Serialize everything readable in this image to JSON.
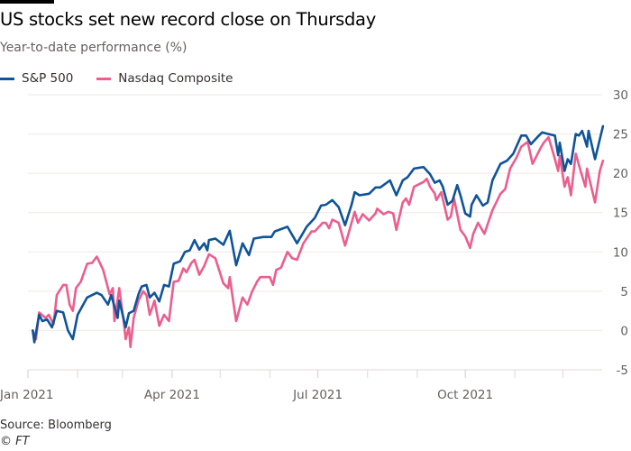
{
  "chart_data": {
    "type": "line",
    "title": "US stocks set new record close on Thursday",
    "subtitle": "Year-to-date performance (%)",
    "xlabel": "",
    "ylabel": "",
    "xlim": [
      "2021-01-01",
      "2021-12-31"
    ],
    "ylim": [
      -5,
      30
    ],
    "yticks": [
      30,
      25,
      20,
      15,
      10,
      5,
      0,
      -5
    ],
    "xticks": [
      {
        "date": "2021-01-01",
        "label": "Jan 2021"
      },
      {
        "date": "2021-04-01",
        "label": "Apr 2021"
      },
      {
        "date": "2021-07-01",
        "label": "Jul 2021"
      },
      {
        "date": "2021-10-01",
        "label": "Oct 2021"
      }
    ],
    "minor_xticks": [
      "2021-02-01",
      "2021-03-01",
      "2021-05-01",
      "2021-06-01",
      "2021-08-01",
      "2021-09-01",
      "2021-11-01",
      "2021-12-01"
    ],
    "grid": "horizontal",
    "legend_position": "top-left",
    "series": [
      {
        "name": "S&P 500",
        "color": "#0f5499",
        "points": [
          [
            "2021-01-04",
            0
          ],
          [
            "2021-01-05",
            -1.5
          ],
          [
            "2021-01-06",
            -0.3
          ],
          [
            "2021-01-08",
            2
          ],
          [
            "2021-01-10",
            1.2
          ],
          [
            "2021-01-13",
            1.4
          ],
          [
            "2021-01-16",
            0.4
          ],
          [
            "2021-01-19",
            2.5
          ],
          [
            "2021-01-23",
            2.3
          ],
          [
            "2021-01-26",
            0
          ],
          [
            "2021-01-29",
            -1.1
          ],
          [
            "2021-02-01",
            2
          ],
          [
            "2021-02-07",
            4.2
          ],
          [
            "2021-02-13",
            4.8
          ],
          [
            "2021-02-16",
            4.5
          ],
          [
            "2021-02-20",
            3.3
          ],
          [
            "2021-02-22",
            4.5
          ],
          [
            "2021-02-26",
            1.6
          ],
          [
            "2021-02-27",
            3.8
          ],
          [
            "2021-03-03",
            0.4
          ],
          [
            "2021-03-05",
            2.2
          ],
          [
            "2021-03-08",
            2.5
          ],
          [
            "2021-03-11",
            4.6
          ],
          [
            "2021-03-13",
            5.6
          ],
          [
            "2021-03-16",
            5.8
          ],
          [
            "2021-03-18",
            4.2
          ],
          [
            "2021-03-21",
            4.8
          ],
          [
            "2021-03-24",
            3.7
          ],
          [
            "2021-03-27",
            5.8
          ],
          [
            "2021-03-30",
            5.6
          ],
          [
            "2021-04-02",
            8.5
          ],
          [
            "2021-04-06",
            8.8
          ],
          [
            "2021-04-09",
            10
          ],
          [
            "2021-04-12",
            10.2
          ],
          [
            "2021-04-15",
            11.5
          ],
          [
            "2021-04-18",
            10.3
          ],
          [
            "2021-04-21",
            11.1
          ],
          [
            "2021-04-23",
            10.2
          ],
          [
            "2021-04-24",
            11.5
          ],
          [
            "2021-04-28",
            11.7
          ],
          [
            "2021-05-03",
            10.9
          ],
          [
            "2021-05-07",
            12.7
          ],
          [
            "2021-05-11",
            8.3
          ],
          [
            "2021-05-15",
            11.1
          ],
          [
            "2021-05-19",
            9.6
          ],
          [
            "2021-05-22",
            11.7
          ],
          [
            "2021-05-28",
            11.9
          ],
          [
            "2021-06-02",
            11.9
          ],
          [
            "2021-06-04",
            12.6
          ],
          [
            "2021-06-12",
            13.2
          ],
          [
            "2021-06-18",
            11.1
          ],
          [
            "2021-06-24",
            13.2
          ],
          [
            "2021-06-29",
            14.3
          ],
          [
            "2021-07-03",
            15.9
          ],
          [
            "2021-07-06",
            16
          ],
          [
            "2021-07-10",
            16.6
          ],
          [
            "2021-07-14",
            15.7
          ],
          [
            "2021-07-18",
            13.4
          ],
          [
            "2021-07-22",
            16
          ],
          [
            "2021-07-24",
            17.6
          ],
          [
            "2021-07-27",
            17.2
          ],
          [
            "2021-08-02",
            17.4
          ],
          [
            "2021-08-06",
            18.2
          ],
          [
            "2021-08-09",
            18.2
          ],
          [
            "2021-08-15",
            19.1
          ],
          [
            "2021-08-19",
            17.2
          ],
          [
            "2021-08-23",
            19.1
          ],
          [
            "2021-08-26",
            19.5
          ],
          [
            "2021-08-30",
            20.6
          ],
          [
            "2021-09-05",
            20.8
          ],
          [
            "2021-09-09",
            19.9
          ],
          [
            "2021-09-12",
            18.8
          ],
          [
            "2021-09-15",
            19.1
          ],
          [
            "2021-09-17",
            18.3
          ],
          [
            "2021-09-20",
            16
          ],
          [
            "2021-09-23",
            16.5
          ],
          [
            "2021-09-26",
            18.5
          ],
          [
            "2021-09-28",
            17.2
          ],
          [
            "2021-10-01",
            14.9
          ],
          [
            "2021-10-04",
            14.5
          ],
          [
            "2021-10-05",
            16
          ],
          [
            "2021-10-08",
            17.2
          ],
          [
            "2021-10-12",
            15.9
          ],
          [
            "2021-10-15",
            16.3
          ],
          [
            "2021-10-18",
            19.1
          ],
          [
            "2021-10-23",
            21.2
          ],
          [
            "2021-10-27",
            21.6
          ],
          [
            "2021-10-31",
            22.5
          ],
          [
            "2021-11-05",
            24.8
          ],
          [
            "2021-11-08",
            24.8
          ],
          [
            "2021-11-11",
            23.7
          ],
          [
            "2021-11-15",
            24.6
          ],
          [
            "2021-11-18",
            25.2
          ],
          [
            "2021-11-22",
            25
          ],
          [
            "2021-11-26",
            24.8
          ],
          [
            "2021-11-28",
            22.3
          ],
          [
            "2021-11-29",
            23.9
          ],
          [
            "2021-12-02",
            20.3
          ],
          [
            "2021-12-04",
            21.8
          ],
          [
            "2021-12-06",
            21.2
          ],
          [
            "2021-12-09",
            25
          ],
          [
            "2021-12-11",
            24.8
          ],
          [
            "2021-12-13",
            25.4
          ],
          [
            "2021-12-16",
            23.4
          ],
          [
            "2021-12-17",
            25.4
          ],
          [
            "2021-12-21",
            21.8
          ],
          [
            "2021-12-26",
            26
          ]
        ]
      },
      {
        "name": "Nasdaq Composite",
        "color": "#eb5e8d",
        "points": [
          [
            "2021-01-04",
            0
          ],
          [
            "2021-01-06",
            -1.1
          ],
          [
            "2021-01-08",
            2.3
          ],
          [
            "2021-01-12",
            1.6
          ],
          [
            "2021-01-14",
            2
          ],
          [
            "2021-01-17",
            0.8
          ],
          [
            "2021-01-19",
            4.5
          ],
          [
            "2021-01-23",
            5.8
          ],
          [
            "2021-01-25",
            5.8
          ],
          [
            "2021-01-27",
            3.3
          ],
          [
            "2021-01-29",
            2.5
          ],
          [
            "2021-01-31",
            5.4
          ],
          [
            "2021-02-03",
            6.2
          ],
          [
            "2021-02-07",
            8.5
          ],
          [
            "2021-02-10",
            8.6
          ],
          [
            "2021-02-13",
            9.4
          ],
          [
            "2021-02-17",
            7.7
          ],
          [
            "2021-02-21",
            4.6
          ],
          [
            "2021-02-23",
            5.4
          ],
          [
            "2021-02-24",
            1.2
          ],
          [
            "2021-02-27",
            5.4
          ],
          [
            "2021-03-02",
            0.8
          ],
          [
            "2021-03-03",
            -1.1
          ],
          [
            "2021-03-05",
            0.4
          ],
          [
            "2021-03-06",
            -2.1
          ],
          [
            "2021-03-08",
            1.6
          ],
          [
            "2021-03-11",
            3.8
          ],
          [
            "2021-03-14",
            5
          ],
          [
            "2021-03-16",
            4.5
          ],
          [
            "2021-03-18",
            2
          ],
          [
            "2021-03-21",
            3.8
          ],
          [
            "2021-03-24",
            0.6
          ],
          [
            "2021-03-27",
            2
          ],
          [
            "2021-03-30",
            1.2
          ],
          [
            "2021-04-02",
            6.2
          ],
          [
            "2021-04-05",
            6.3
          ],
          [
            "2021-04-08",
            7.9
          ],
          [
            "2021-04-10",
            7.4
          ],
          [
            "2021-04-13",
            8.6
          ],
          [
            "2021-04-15",
            9
          ],
          [
            "2021-04-18",
            7.1
          ],
          [
            "2021-04-21",
            8.2
          ],
          [
            "2021-04-24",
            9.7
          ],
          [
            "2021-04-28",
            9.2
          ],
          [
            "2021-05-03",
            6
          ],
          [
            "2021-05-06",
            5.4
          ],
          [
            "2021-05-07",
            6.8
          ],
          [
            "2021-05-09",
            3.9
          ],
          [
            "2021-05-11",
            1.2
          ],
          [
            "2021-05-15",
            4.2
          ],
          [
            "2021-05-18",
            3.3
          ],
          [
            "2021-05-21",
            5
          ],
          [
            "2021-05-24",
            6.2
          ],
          [
            "2021-05-26",
            6.8
          ],
          [
            "2021-06-01",
            6.8
          ],
          [
            "2021-06-03",
            5.8
          ],
          [
            "2021-06-05",
            7.7
          ],
          [
            "2021-06-08",
            8
          ],
          [
            "2021-06-12",
            10
          ],
          [
            "2021-06-15",
            9.2
          ],
          [
            "2021-06-18",
            9
          ],
          [
            "2021-06-22",
            11.1
          ],
          [
            "2021-06-27",
            12.6
          ],
          [
            "2021-06-29",
            12.6
          ],
          [
            "2021-07-04",
            13.7
          ],
          [
            "2021-07-06",
            13.7
          ],
          [
            "2021-07-08",
            13
          ],
          [
            "2021-07-10",
            14.1
          ],
          [
            "2021-07-14",
            13.7
          ],
          [
            "2021-07-18",
            10.8
          ],
          [
            "2021-07-22",
            13.7
          ],
          [
            "2021-07-24",
            15.1
          ],
          [
            "2021-07-26",
            13.7
          ],
          [
            "2021-07-29",
            14.8
          ],
          [
            "2021-08-02",
            14
          ],
          [
            "2021-08-06",
            14.9
          ],
          [
            "2021-08-07",
            15.5
          ],
          [
            "2021-08-11",
            14.8
          ],
          [
            "2021-08-14",
            15.1
          ],
          [
            "2021-08-17",
            14.9
          ],
          [
            "2021-08-19",
            12.8
          ],
          [
            "2021-08-23",
            16.3
          ],
          [
            "2021-08-25",
            16.8
          ],
          [
            "2021-08-27",
            16
          ],
          [
            "2021-08-30",
            18.3
          ],
          [
            "2021-09-05",
            18.9
          ],
          [
            "2021-09-07",
            19.3
          ],
          [
            "2021-09-09",
            18.3
          ],
          [
            "2021-09-12",
            17.4
          ],
          [
            "2021-09-13",
            16.6
          ],
          [
            "2021-09-16",
            17.6
          ],
          [
            "2021-09-20",
            14.1
          ],
          [
            "2021-09-22",
            14.5
          ],
          [
            "2021-09-24",
            16.8
          ],
          [
            "2021-09-28",
            12.8
          ],
          [
            "2021-10-01",
            12
          ],
          [
            "2021-10-04",
            10.5
          ],
          [
            "2021-10-06",
            12.3
          ],
          [
            "2021-10-09",
            13.7
          ],
          [
            "2021-10-13",
            12.3
          ],
          [
            "2021-10-18",
            15.3
          ],
          [
            "2021-10-23",
            17.4
          ],
          [
            "2021-10-26",
            18
          ],
          [
            "2021-10-29",
            20.6
          ],
          [
            "2021-11-02",
            22
          ],
          [
            "2021-11-05",
            23.4
          ],
          [
            "2021-11-09",
            24
          ],
          [
            "2021-11-12",
            21.2
          ],
          [
            "2021-11-17",
            23.2
          ],
          [
            "2021-11-19",
            23.9
          ],
          [
            "2021-11-22",
            24.6
          ],
          [
            "2021-11-25",
            22.5
          ],
          [
            "2021-11-28",
            20.3
          ],
          [
            "2021-11-29",
            22.2
          ],
          [
            "2021-12-02",
            18.3
          ],
          [
            "2021-12-04",
            19.5
          ],
          [
            "2021-12-06",
            17.2
          ],
          [
            "2021-12-09",
            22.5
          ],
          [
            "2021-12-12",
            20.3
          ],
          [
            "2021-12-15",
            18.3
          ],
          [
            "2021-12-16",
            20.6
          ],
          [
            "2021-12-19",
            18
          ],
          [
            "2021-12-21",
            16.3
          ],
          [
            "2021-12-24",
            20.3
          ],
          [
            "2021-12-26",
            21.6
          ]
        ]
      }
    ]
  },
  "footer": {
    "source": "Source: Bloomberg",
    "credit": "© FT"
  }
}
